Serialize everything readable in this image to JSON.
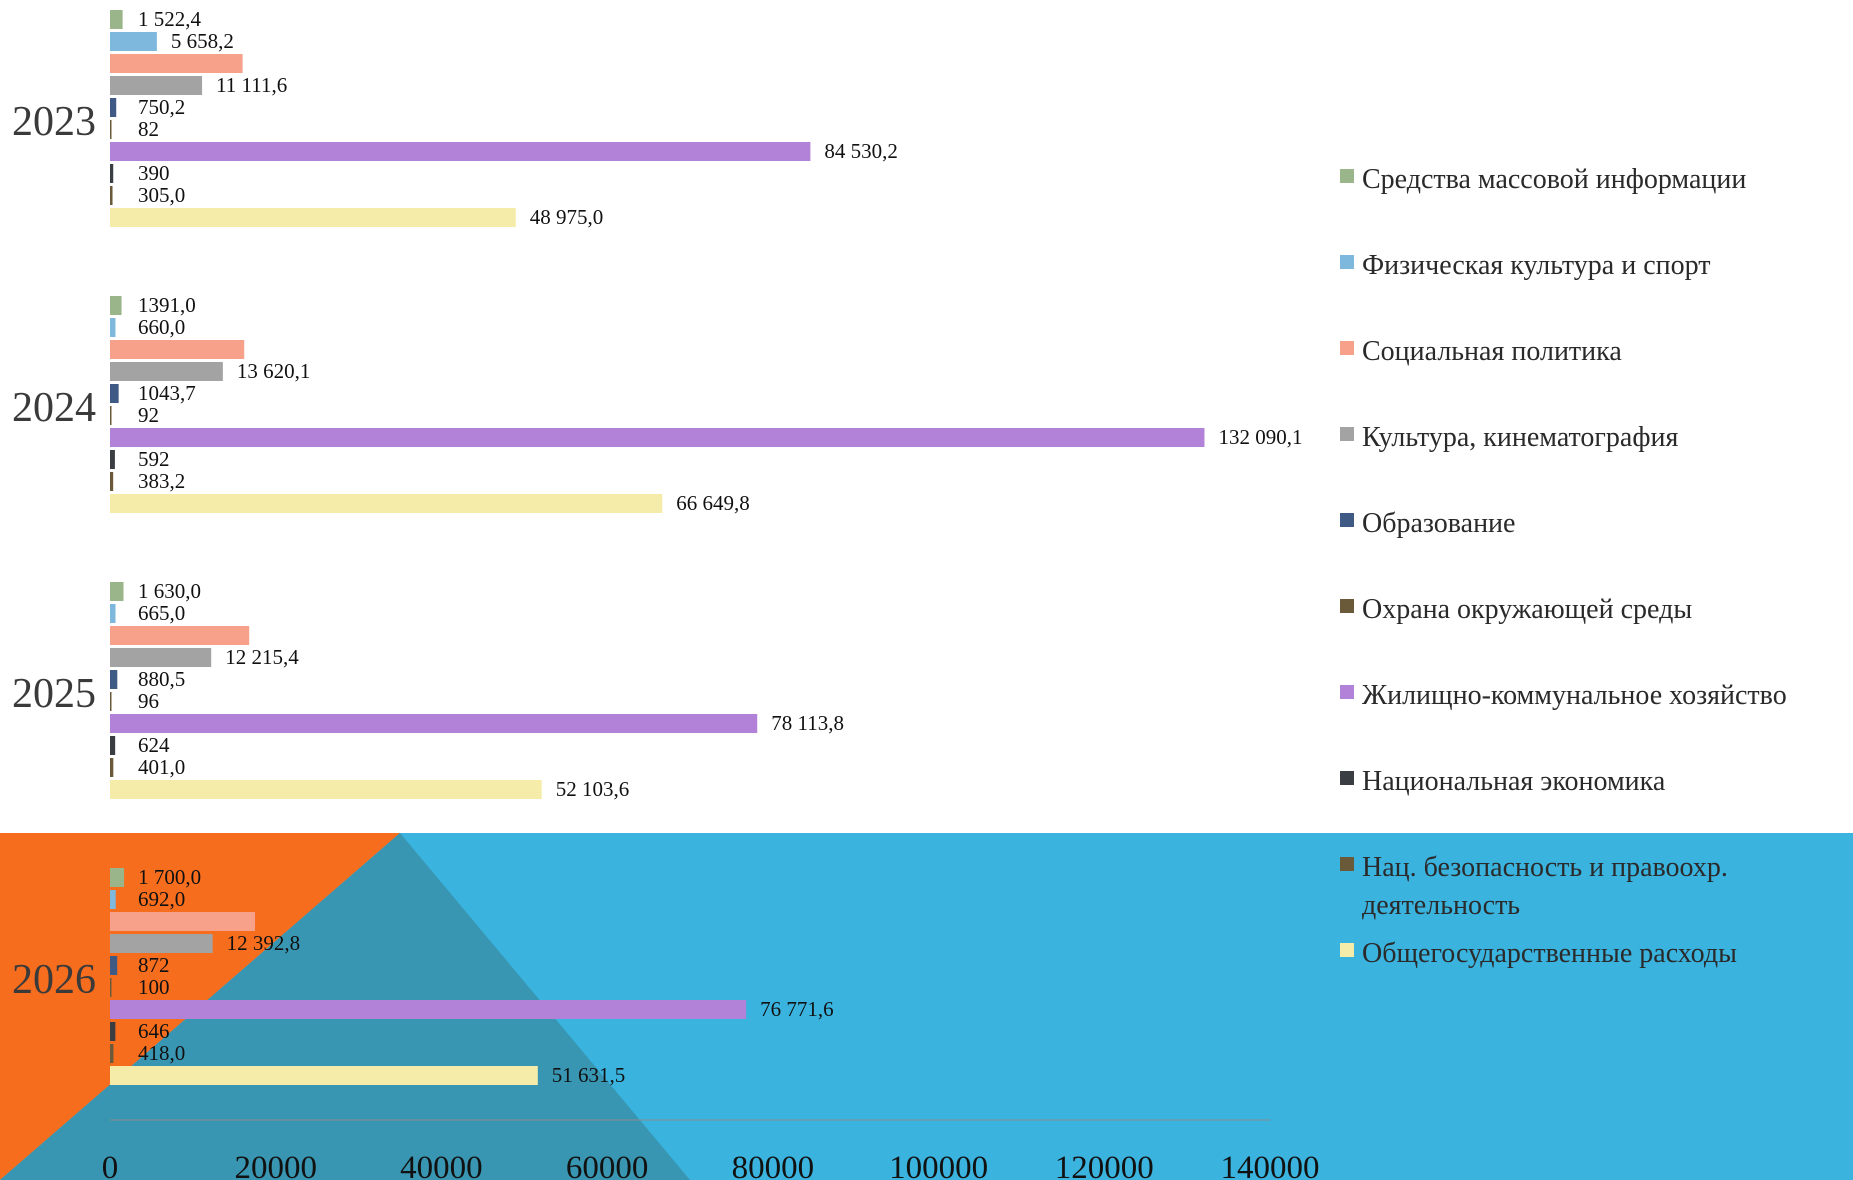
{
  "chart_data": {
    "type": "bar",
    "orientation": "horizontal",
    "title": "",
    "xlabel": "",
    "ylabel": "",
    "xlim": [
      0,
      140000
    ],
    "x_ticks": [
      "0",
      "20000",
      "40000",
      "60000",
      "80000",
      "100000",
      "120000",
      "140000"
    ],
    "grid": false,
    "legend_position": "right",
    "categories": [
      "2023",
      "2024",
      "2025",
      "2026"
    ],
    "series": [
      {
        "name": "Средства массовой информации",
        "color": "#9bb58a",
        "values": [
          1522.4,
          1391.0,
          1630.0,
          1700.0
        ],
        "labels": [
          "1 522,4",
          "1391,0",
          "1 630,0",
          "1 700,0"
        ]
      },
      {
        "name": "Физическая культура и спорт",
        "color": "#7fb8dd",
        "values": [
          5658.2,
          660.0,
          665.0,
          692.0
        ],
        "labels": [
          "5 658,2",
          "660,0",
          "665,0",
          "692,0"
        ]
      },
      {
        "name": "Социальная политика",
        "color": "#f7a18a",
        "values": [
          16000,
          16200,
          16800,
          17500
        ],
        "labels": [
          "",
          "",
          "",
          ""
        ]
      },
      {
        "name": "Культура, кинематография",
        "color": "#a3a3a3",
        "values": [
          11111.6,
          13620.1,
          12215.4,
          12392.8
        ],
        "labels": [
          "11 111,6",
          "13 620,1",
          "12 215,4",
          "12 392,8"
        ]
      },
      {
        "name": "Образование",
        "color": "#3f5a85",
        "values": [
          750.2,
          1043.7,
          880.5,
          872
        ],
        "labels": [
          "750,2",
          "1043,7",
          "880,5",
          "872"
        ]
      },
      {
        "name": "Охрана окружающей среды",
        "color": "#6b5a3a",
        "values": [
          82,
          92,
          96,
          100
        ],
        "labels": [
          "82",
          "92",
          "96",
          "100"
        ]
      },
      {
        "name": "Жилищно-коммунальное хозяйство",
        "color": "#b282d9",
        "values": [
          84530.2,
          132090.1,
          78113.8,
          76771.6
        ],
        "labels": [
          "84 530,2",
          "132 090,1",
          "78 113,8",
          "76 771,6"
        ]
      },
      {
        "name": "Национальная экономика",
        "color": "#3a3d42",
        "values": [
          390,
          592,
          624,
          646
        ],
        "labels": [
          "390",
          "592",
          "624",
          "646"
        ]
      },
      {
        "name": "Нац. безопасность и правоохр. деятельность",
        "color": "#6b5a3a",
        "values": [
          305.0,
          383.2,
          401.0,
          418.0
        ],
        "labels": [
          "305,0",
          "383,2",
          "401,0",
          "418,0"
        ]
      },
      {
        "name": "Общегосударственные расходы",
        "color": "#f5ecaa",
        "values": [
          48975.0,
          66649.8,
          52103.6,
          51631.5
        ],
        "labels": [
          "48 975,0",
          "66 649,8",
          "52 103,6",
          "51 631,5"
        ]
      }
    ],
    "legend": [
      {
        "lines": [
          "Средства массовой информации"
        ],
        "color": "#9bb58a"
      },
      {
        "lines": [
          "Физическая культура и спорт"
        ],
        "color": "#7fb8dd"
      },
      {
        "lines": [
          "Социальная политика"
        ],
        "color": "#f7a18a"
      },
      {
        "lines": [
          "Культура, кинематография"
        ],
        "color": "#a3a3a3"
      },
      {
        "lines": [
          "Образование"
        ],
        "color": "#3f5a85"
      },
      {
        "lines": [
          "Охрана окружающей среды"
        ],
        "color": "#6b5a3a"
      },
      {
        "lines": [
          "Жилищно-коммунальное хозяйство"
        ],
        "color": "#b282d9"
      },
      {
        "lines": [
          "Национальная экономика"
        ],
        "color": "#3a3d42"
      },
      {
        "lines": [
          "Нац. безопасность и правоохр.",
          "деятельность"
        ],
        "color": "#6b5a3a"
      },
      {
        "lines": [
          "Общегосударственные расходы"
        ],
        "color": "#f5ecaa"
      }
    ]
  },
  "background": {
    "white": "#ffffff",
    "blue": "#3ab3df",
    "orange": "#f76d1e",
    "teal": "#3996b2"
  }
}
